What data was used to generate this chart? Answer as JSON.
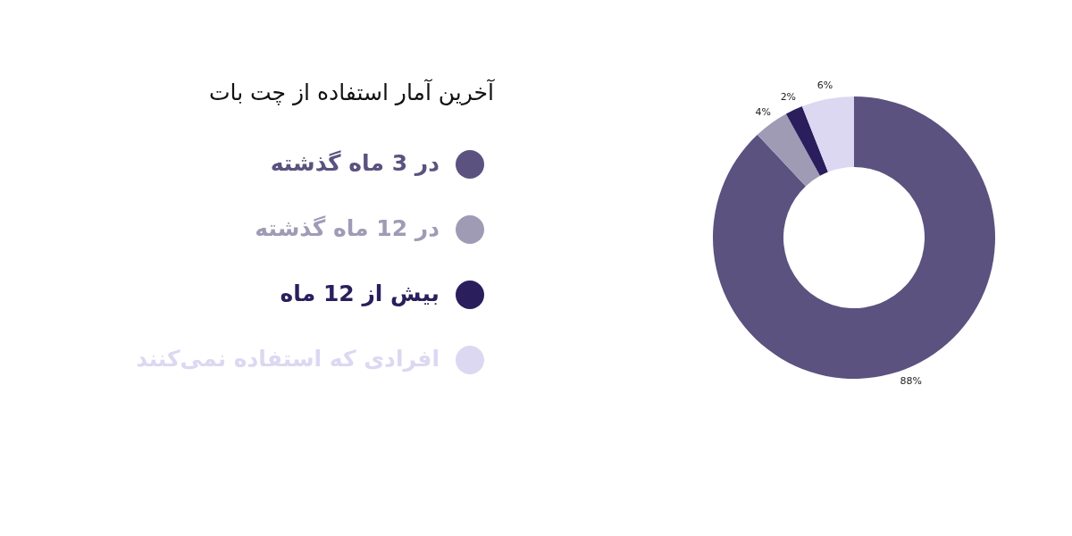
{
  "chart_data": {
    "type": "donut",
    "title": "آخرین آمار استفاده از چت بات",
    "categories": [
      "در 3 ماه گذشته",
      "در 12 ماه گذشته",
      "بیش از 12 ماه",
      "افرادی که استفاده نمی‌کنند"
    ],
    "values": [
      88,
      4,
      2,
      6
    ],
    "colors": [
      "#5b527f",
      "#a09bb5",
      "#2a1f5c",
      "#dcd8f2"
    ],
    "value_labels": [
      "88%",
      "4%",
      "2%",
      "6%"
    ],
    "legend": "left"
  }
}
